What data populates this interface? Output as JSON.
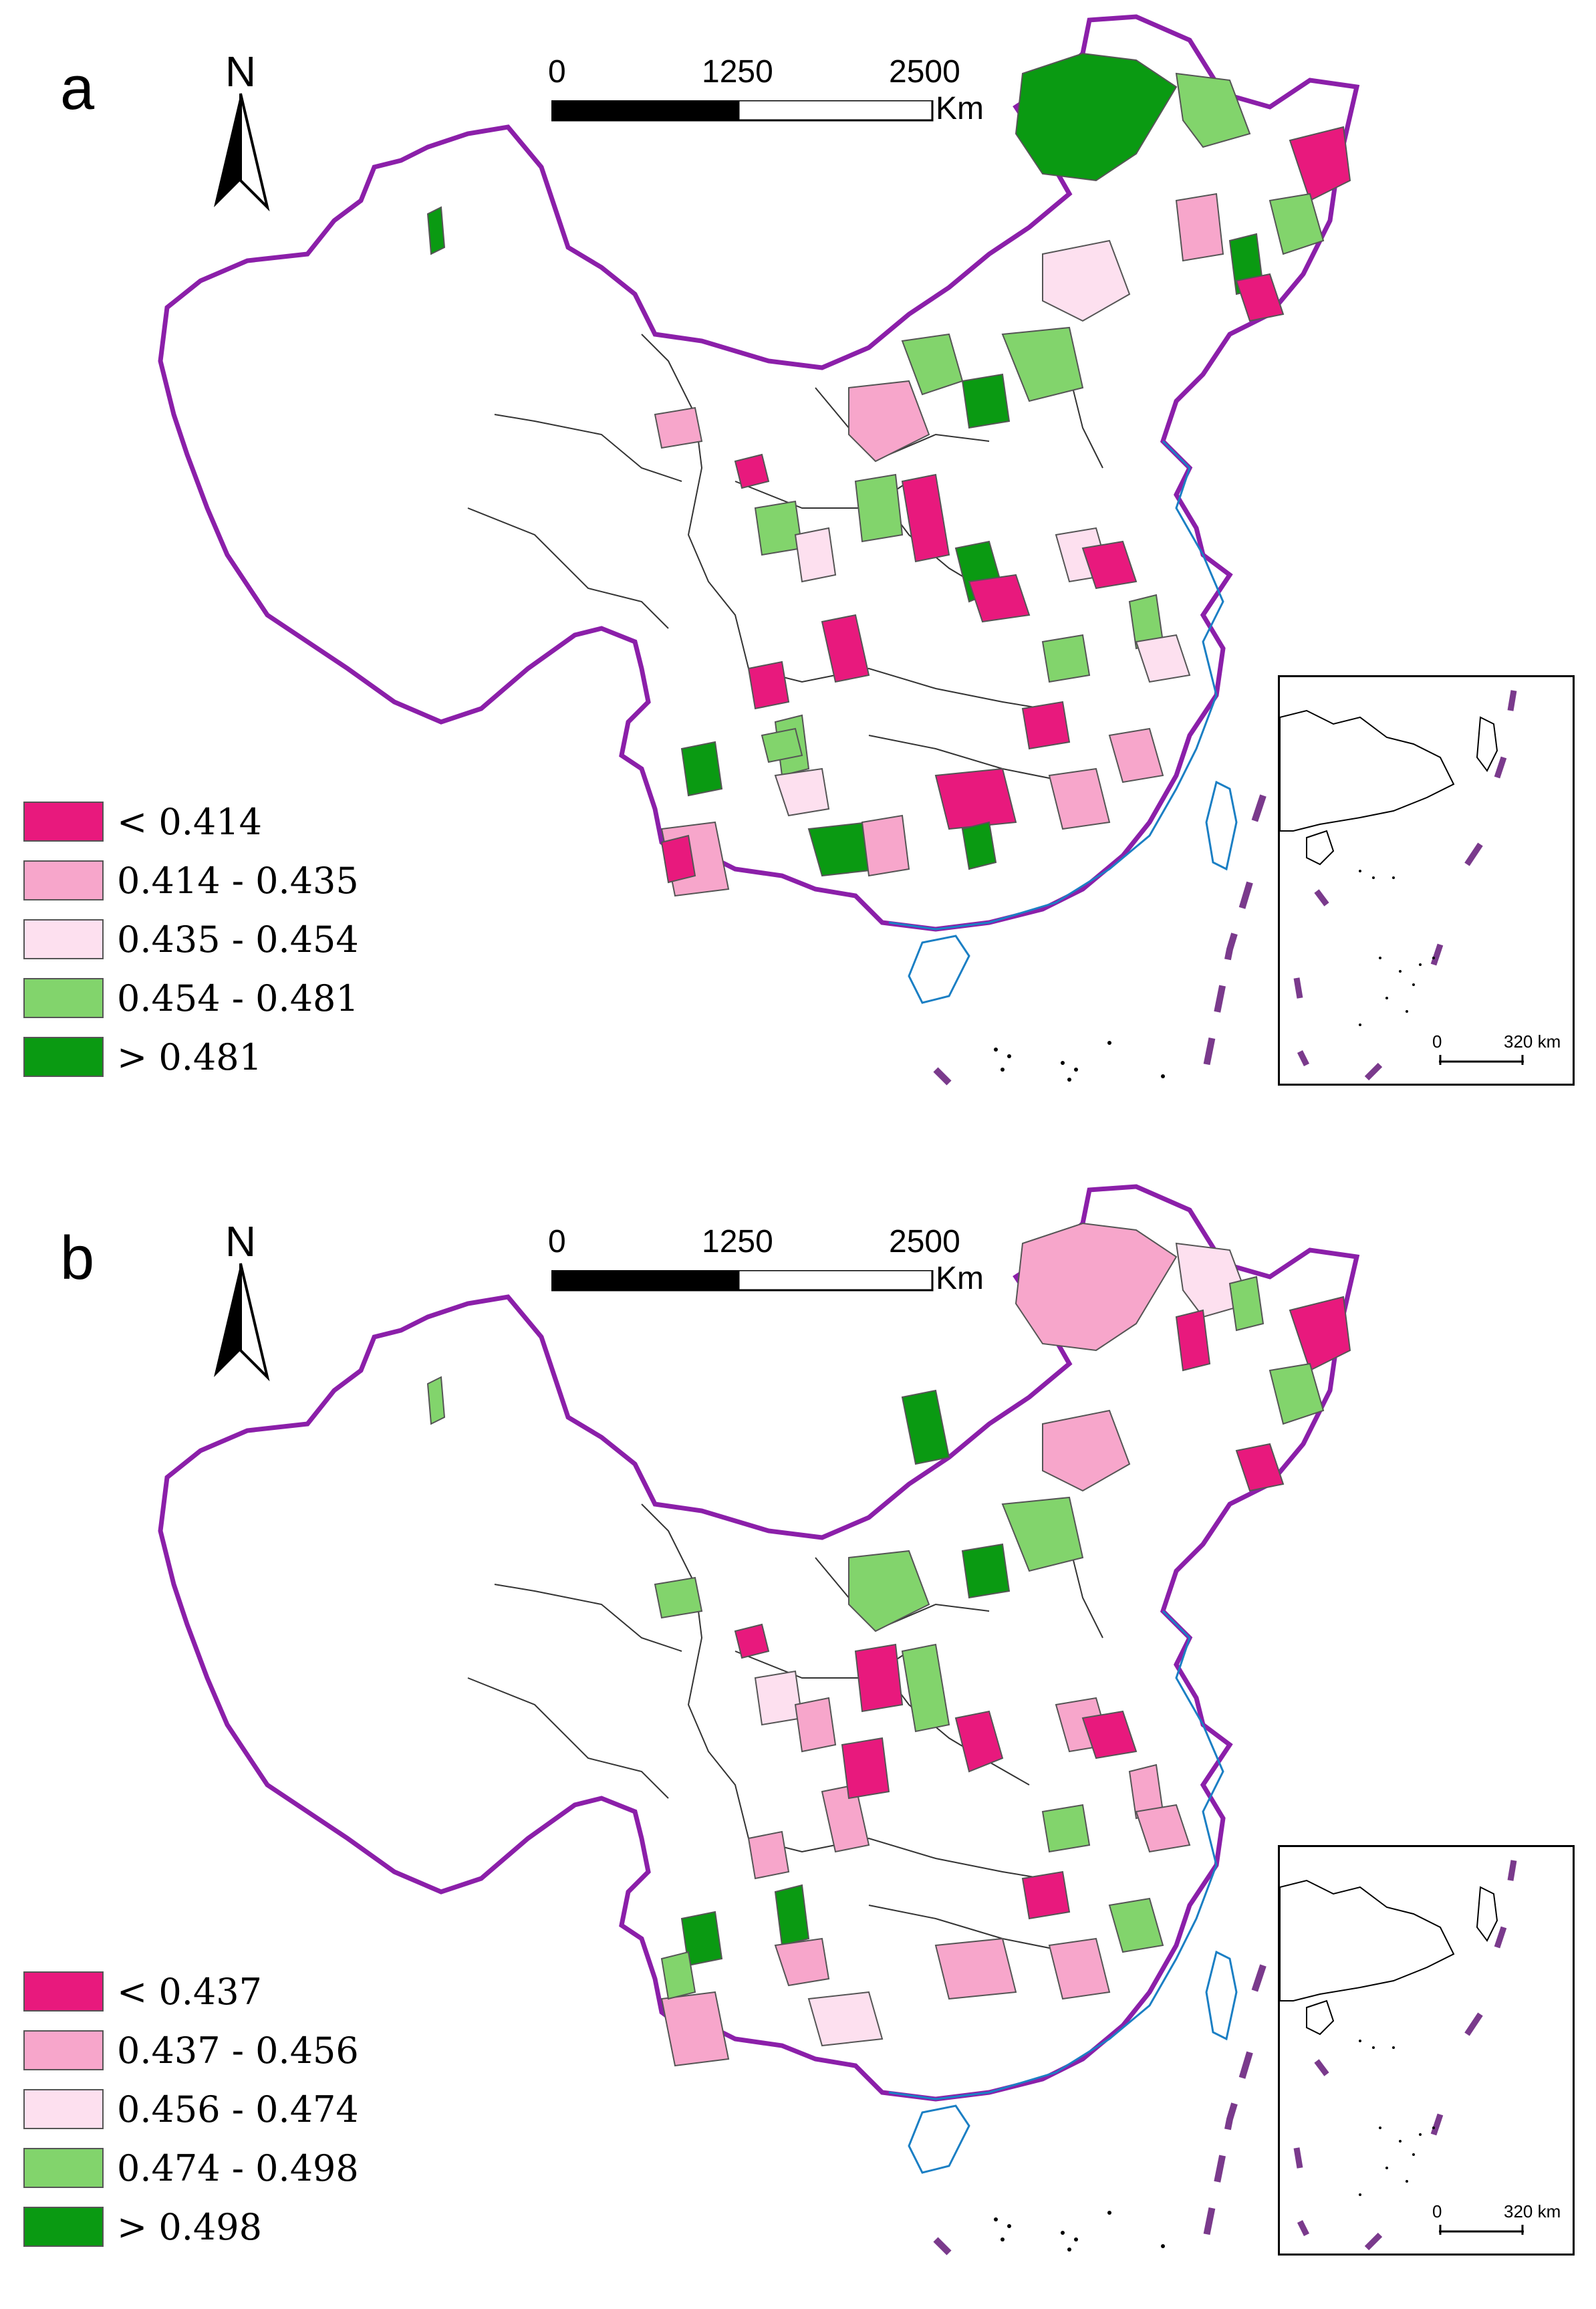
{
  "figure": {
    "panels": [
      {
        "id": "a",
        "letter": "a",
        "north_label": "N",
        "scale": {
          "tick_0": "0",
          "tick_1": "1250",
          "tick_2": "2500",
          "unit": "Km"
        },
        "inset_scale": {
          "tick_0": "0",
          "tick_1": "320 km"
        },
        "legend": [
          {
            "label": "< 0.414",
            "color": "#E8197D"
          },
          {
            "label": "0.414 - 0.435",
            "color": "#F7A6CB"
          },
          {
            "label": "0.435 - 0.454",
            "color": "#FDE0EF"
          },
          {
            "label": "0.454 - 0.481",
            "color": "#82D46C"
          },
          {
            "label": "> 0.481",
            "color": "#0A9A12"
          }
        ]
      },
      {
        "id": "b",
        "letter": "b",
        "north_label": "N",
        "scale": {
          "tick_0": "0",
          "tick_1": "1250",
          "tick_2": "2500",
          "unit": "Km"
        },
        "inset_scale": {
          "tick_0": "0",
          "tick_1": "320 km"
        },
        "legend": [
          {
            "label": "< 0.437",
            "color": "#E8197D"
          },
          {
            "label": "0.437 - 0.456",
            "color": "#F7A6CB"
          },
          {
            "label": "0.456 - 0.474",
            "color": "#FDE0EF"
          },
          {
            "label": "0.474 - 0.498",
            "color": "#82D46C"
          },
          {
            "label": "> 0.498",
            "color": "#0A9A12"
          }
        ]
      }
    ],
    "colors": {
      "border": "#8B1FA9",
      "coast": "#1B7FC4",
      "dash": "#7A3A8C"
    }
  }
}
